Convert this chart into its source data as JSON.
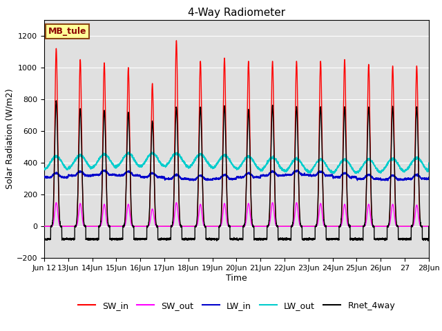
{
  "title": "4-Way Radiometer",
  "xlabel": "Time",
  "ylabel": "Solar Radiation (W/m2)",
  "ylim": [
    -200,
    1300
  ],
  "yticks": [
    -200,
    0,
    200,
    400,
    600,
    800,
    1000,
    1200
  ],
  "num_days": 16,
  "station_label": "MB_tule",
  "colors": {
    "SW_in": "#ff0000",
    "SW_out": "#ff00ff",
    "LW_in": "#0000cc",
    "LW_out": "#00cccc",
    "Rnet_4way": "#000000"
  },
  "background_color": "#ffffff",
  "plot_bg_color": "#e0e0e0",
  "grid_color": "#ffffff",
  "SW_in_peaks": [
    1120,
    1050,
    1030,
    1000,
    900,
    1170,
    1040,
    1060,
    1040,
    1040,
    1040,
    1040,
    1050,
    1020,
    1010,
    1010
  ],
  "SW_out_peaks": [
    150,
    145,
    140,
    140,
    110,
    150,
    140,
    145,
    145,
    150,
    150,
    145,
    140,
    140,
    140,
    135
  ],
  "LW_in_base": 310,
  "LW_out_base": 400,
  "Rnet_peaks": [
    790,
    740,
    730,
    720,
    660,
    750,
    750,
    760,
    730,
    760,
    750,
    750,
    750,
    750,
    750,
    750
  ],
  "Rnet_night": -80,
  "title_fontsize": 11,
  "label_fontsize": 9,
  "tick_fontsize": 8,
  "legend_fontsize": 9,
  "linewidth": 1.0,
  "tick_labels": [
    "Jun 12",
    "13Jun",
    "14Jun",
    "15Jun",
    "16Jun",
    "17Jun",
    "18Jun",
    "19Jun",
    "20Jun",
    "21Jun",
    "22Jun",
    "23Jun",
    "24Jun",
    "25Jun",
    "26Jun",
    "27",
    ""
  ]
}
